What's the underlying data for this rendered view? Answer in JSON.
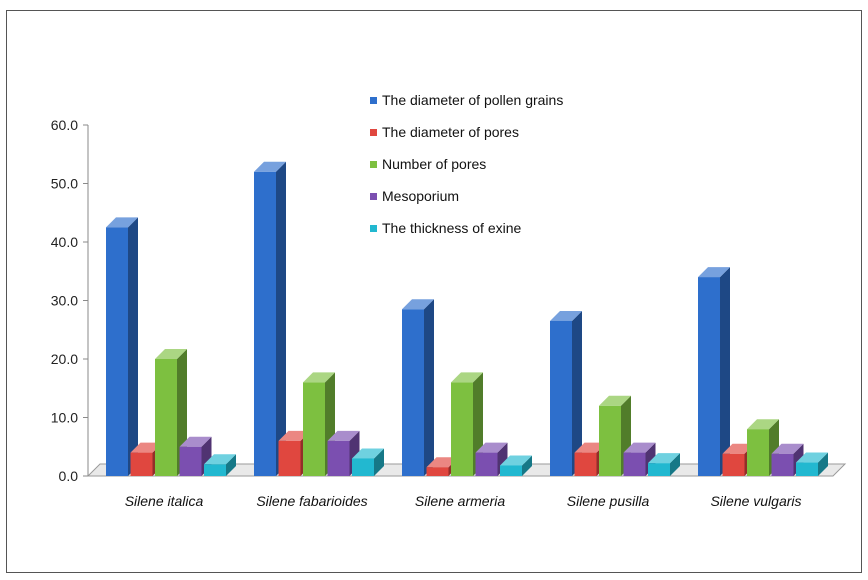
{
  "chart_data": {
    "type": "bar",
    "categories": [
      "Silene italica",
      "Silene fabarioides",
      "Silene armeria",
      "Silene pusilla",
      "Silene vulgaris"
    ],
    "series": [
      {
        "name": "The diameter of pollen grains",
        "values": [
          42.5,
          52.0,
          28.5,
          26.5,
          34.0
        ],
        "color": "#2e6fcc"
      },
      {
        "name": "The diameter of pores",
        "values": [
          4.0,
          6.0,
          1.5,
          4.0,
          3.8
        ],
        "color": "#e0473f"
      },
      {
        "name": "Number of pores",
        "values": [
          20.0,
          16.0,
          16.0,
          12.0,
          8.0
        ],
        "color": "#7dc040"
      },
      {
        "name": "Mesoporium",
        "values": [
          5.0,
          6.0,
          4.0,
          4.0,
          3.8
        ],
        "color": "#7b4fb0"
      },
      {
        "name": "The thickness of exine",
        "values": [
          2.0,
          3.0,
          1.8,
          2.2,
          2.3
        ],
        "color": "#22b8d0"
      }
    ],
    "yticks": [
      "0.0",
      "10.0",
      "20.0",
      "30.0",
      "40.0",
      "50.0",
      "60.0"
    ],
    "ylim": [
      0,
      60
    ],
    "legend_position": "top-center",
    "grid": false
  }
}
